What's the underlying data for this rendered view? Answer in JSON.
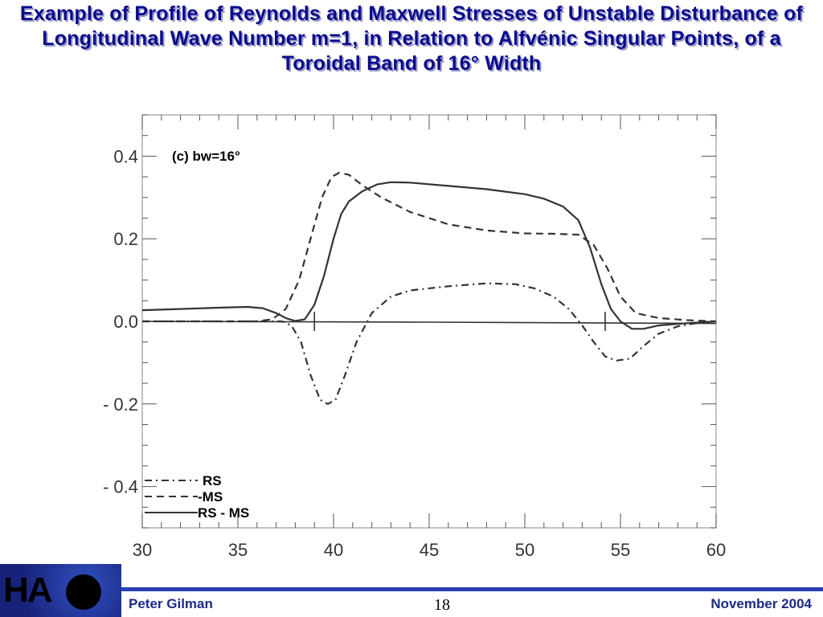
{
  "slide": {
    "title": "Example of Profile of Reynolds and Maxwell Stresses of Unstable Disturbance of Longitudinal Wave Number m=1, in Relation to Alfvénic Singular Points, of a Toroidal Band of 16°  Width"
  },
  "footer": {
    "logo_text": "HA",
    "author": "Peter Gilman",
    "page": "18",
    "date": "November 2004"
  },
  "chart_data": {
    "type": "line",
    "annotation": "(c) bw=16°",
    "xlim": [
      30,
      60
    ],
    "ylim": [
      -0.5,
      0.5
    ],
    "x_ticks": [
      30,
      35,
      40,
      45,
      50,
      55,
      60
    ],
    "x_tick_labels": [
      "30",
      "35",
      "40",
      "45",
      "50",
      "55",
      "60"
    ],
    "y_ticks": [
      0.4,
      0.2,
      0.0,
      -0.2,
      -0.4
    ],
    "y_tick_labels": [
      "0.4",
      "0.2",
      "0.0",
      "- 0.2",
      "- 0.4"
    ],
    "singular_points": [
      39.0,
      54.2
    ],
    "legend": [
      {
        "label": "RS",
        "style": "dashdot"
      },
      {
        "label": "-MS",
        "style": "dashed"
      },
      {
        "label": "RS - MS",
        "style": "solid"
      }
    ],
    "series": [
      {
        "style": "dashdot",
        "points": [
          [
            30,
            0.0
          ],
          [
            36,
            0.0
          ],
          [
            37.3,
            0.0
          ],
          [
            37.8,
            -0.01
          ],
          [
            38.3,
            -0.05
          ],
          [
            38.8,
            -0.13
          ],
          [
            39.3,
            -0.19
          ],
          [
            39.7,
            -0.2
          ],
          [
            40.1,
            -0.19
          ],
          [
            40.6,
            -0.13
          ],
          [
            41.2,
            -0.05
          ],
          [
            42,
            0.02
          ],
          [
            43,
            0.06
          ],
          [
            44,
            0.075
          ],
          [
            46,
            0.085
          ],
          [
            48,
            0.092
          ],
          [
            49.5,
            0.09
          ],
          [
            50.5,
            0.08
          ],
          [
            51.5,
            0.06
          ],
          [
            52.3,
            0.03
          ],
          [
            53,
            -0.01
          ],
          [
            53.6,
            -0.05
          ],
          [
            54.2,
            -0.085
          ],
          [
            54.8,
            -0.095
          ],
          [
            55.5,
            -0.09
          ],
          [
            56.2,
            -0.06
          ],
          [
            57,
            -0.03
          ],
          [
            58,
            -0.012
          ],
          [
            59,
            -0.004
          ],
          [
            60,
            0.0
          ]
        ]
      },
      {
        "style": "dashed",
        "points": [
          [
            30,
            0.0
          ],
          [
            36,
            0.0
          ],
          [
            36.8,
            0.005
          ],
          [
            37.5,
            0.03
          ],
          [
            38.2,
            0.1
          ],
          [
            38.8,
            0.2
          ],
          [
            39.4,
            0.3
          ],
          [
            39.9,
            0.35
          ],
          [
            40.3,
            0.36
          ],
          [
            40.8,
            0.355
          ],
          [
            41.5,
            0.33
          ],
          [
            42.5,
            0.3
          ],
          [
            44,
            0.265
          ],
          [
            46,
            0.235
          ],
          [
            48,
            0.22
          ],
          [
            50,
            0.213
          ],
          [
            51.5,
            0.212
          ],
          [
            52.8,
            0.21
          ],
          [
            53.6,
            0.185
          ],
          [
            54.3,
            0.13
          ],
          [
            55,
            0.06
          ],
          [
            55.8,
            0.02
          ],
          [
            57,
            0.008
          ],
          [
            58.5,
            0.003
          ],
          [
            60,
            0.0
          ]
        ]
      },
      {
        "style": "solid",
        "points": [
          [
            30,
            0.027
          ],
          [
            32,
            0.03
          ],
          [
            34,
            0.033
          ],
          [
            35.5,
            0.035
          ],
          [
            36.3,
            0.032
          ],
          [
            37,
            0.02
          ],
          [
            37.5,
            0.008
          ],
          [
            38,
            0.001
          ],
          [
            38.5,
            0.005
          ],
          [
            39,
            0.04
          ],
          [
            39.5,
            0.11
          ],
          [
            40,
            0.2
          ],
          [
            40.4,
            0.26
          ],
          [
            40.8,
            0.29
          ],
          [
            41.5,
            0.315
          ],
          [
            42.3,
            0.332
          ],
          [
            43,
            0.337
          ],
          [
            44,
            0.336
          ],
          [
            46,
            0.328
          ],
          [
            48,
            0.32
          ],
          [
            49,
            0.314
          ],
          [
            50,
            0.308
          ],
          [
            51,
            0.297
          ],
          [
            52,
            0.278
          ],
          [
            52.8,
            0.245
          ],
          [
            53.4,
            0.18
          ],
          [
            54,
            0.09
          ],
          [
            54.5,
            0.03
          ],
          [
            55,
            0.0
          ],
          [
            55.6,
            -0.018
          ],
          [
            56.2,
            -0.018
          ],
          [
            57,
            -0.01
          ],
          [
            58,
            -0.006
          ],
          [
            59,
            -0.003
          ],
          [
            60,
            0.0
          ]
        ]
      },
      {
        "style": "solid_thin",
        "points": [
          [
            30,
            0.0
          ],
          [
            45,
            -0.002
          ],
          [
            60,
            -0.005
          ]
        ]
      }
    ]
  }
}
